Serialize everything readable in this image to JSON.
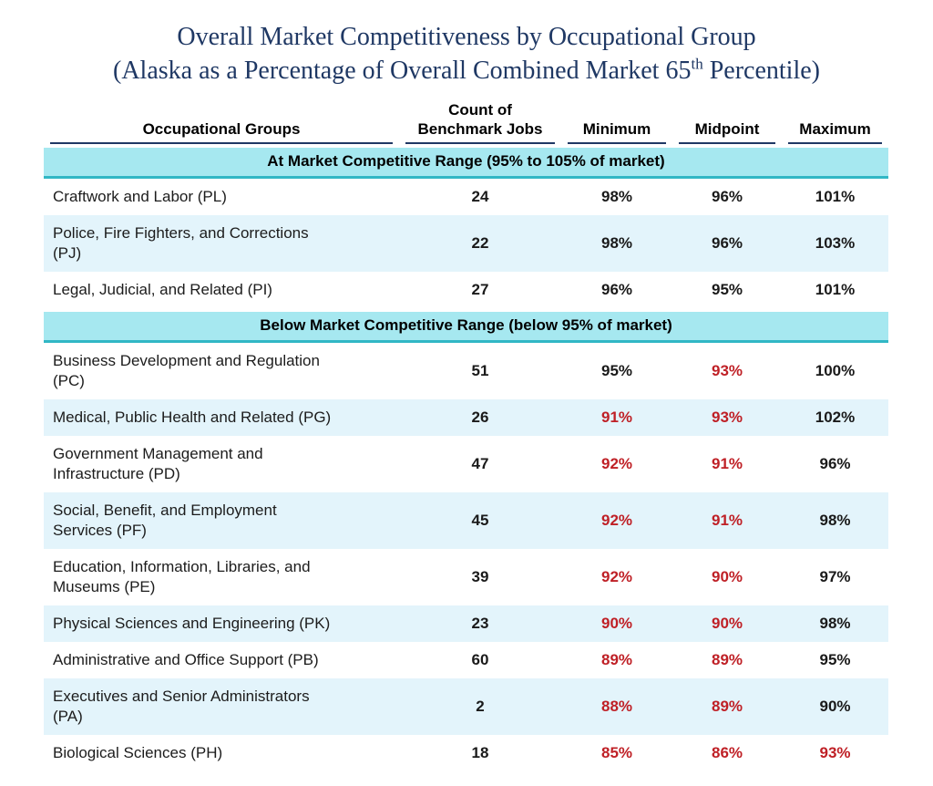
{
  "title": {
    "line1": "Overall Market Competitiveness by Occupational Group",
    "line2_pre": "(Alaska as a Percentage of Overall Combined Market 65",
    "line2_sup": "th",
    "line2_post": " Percentile)"
  },
  "colors": {
    "title_navy": "#1f3864",
    "header_underline": "#1f3864",
    "section_band_bg": "#a6e8f0",
    "section_band_border": "#31b7c5",
    "row_stripe_bg": "#e3f4fb",
    "negative_red": "#bf2026",
    "text_black": "#1a1a1a"
  },
  "table": {
    "headers": {
      "group": "Occupational Groups",
      "count": "Count of\nBenchmark Jobs",
      "min": "Minimum",
      "mid": "Midpoint",
      "max": "Maximum"
    },
    "sections": [
      {
        "label": "At Market Competitive Range (95% to 105% of market)",
        "rows": [
          {
            "group": "Craftwork and Labor (PL)",
            "count": "24",
            "min": {
              "text": "98%",
              "cls": "ok"
            },
            "mid": {
              "text": "96%",
              "cls": "ok"
            },
            "max": {
              "text": "101%",
              "cls": "ok"
            }
          },
          {
            "group": "Police, Fire Fighters, and Corrections\n(PJ)",
            "count": "22",
            "min": {
              "text": "98%",
              "cls": "ok"
            },
            "mid": {
              "text": "96%",
              "cls": "ok"
            },
            "max": {
              "text": "103%",
              "cls": "ok"
            }
          },
          {
            "group": "Legal, Judicial, and Related (PI)",
            "count": "27",
            "min": {
              "text": "96%",
              "cls": "ok"
            },
            "mid": {
              "text": "95%",
              "cls": "ok"
            },
            "max": {
              "text": "101%",
              "cls": "ok"
            }
          }
        ]
      },
      {
        "label": "Below Market Competitive Range (below 95% of market)",
        "rows": [
          {
            "group": "Business Development and Regulation\n(PC)",
            "count": "51",
            "min": {
              "text": "95%",
              "cls": "ok"
            },
            "mid": {
              "text": "93%",
              "cls": "red"
            },
            "max": {
              "text": "100%",
              "cls": "ok"
            }
          },
          {
            "group": "Medical, Public Health and Related (PG)",
            "count": "26",
            "min": {
              "text": "91%",
              "cls": "red"
            },
            "mid": {
              "text": "93%",
              "cls": "red"
            },
            "max": {
              "text": "102%",
              "cls": "ok"
            }
          },
          {
            "group": "Government Management and\nInfrastructure (PD)",
            "count": "47",
            "min": {
              "text": "92%",
              "cls": "red"
            },
            "mid": {
              "text": "91%",
              "cls": "red"
            },
            "max": {
              "text": "96%",
              "cls": "ok"
            }
          },
          {
            "group": "Social, Benefit, and Employment\nServices (PF)",
            "count": "45",
            "min": {
              "text": "92%",
              "cls": "red"
            },
            "mid": {
              "text": "91%",
              "cls": "red"
            },
            "max": {
              "text": "98%",
              "cls": "ok"
            }
          },
          {
            "group": "Education, Information, Libraries, and\nMuseums (PE)",
            "count": "39",
            "min": {
              "text": "92%",
              "cls": "red"
            },
            "mid": {
              "text": "90%",
              "cls": "red"
            },
            "max": {
              "text": "97%",
              "cls": "ok"
            }
          },
          {
            "group": "Physical Sciences and Engineering (PK)",
            "count": "23",
            "min": {
              "text": "90%",
              "cls": "red"
            },
            "mid": {
              "text": "90%",
              "cls": "red"
            },
            "max": {
              "text": "98%",
              "cls": "ok"
            }
          },
          {
            "group": "Administrative and Office Support (PB)",
            "count": "60",
            "min": {
              "text": "89%",
              "cls": "red"
            },
            "mid": {
              "text": "89%",
              "cls": "red"
            },
            "max": {
              "text": "95%",
              "cls": "ok"
            }
          },
          {
            "group": "Executives and Senior Administrators\n(PA)",
            "count": "2",
            "min": {
              "text": "88%",
              "cls": "red"
            },
            "mid": {
              "text": "89%",
              "cls": "red"
            },
            "max": {
              "text": "90%",
              "cls": "ok"
            }
          },
          {
            "group": "Biological Sciences (PH)",
            "count": "18",
            "min": {
              "text": "85%",
              "cls": "red"
            },
            "mid": {
              "text": "86%",
              "cls": "red"
            },
            "max": {
              "text": "93%",
              "cls": "red"
            }
          }
        ]
      }
    ]
  }
}
